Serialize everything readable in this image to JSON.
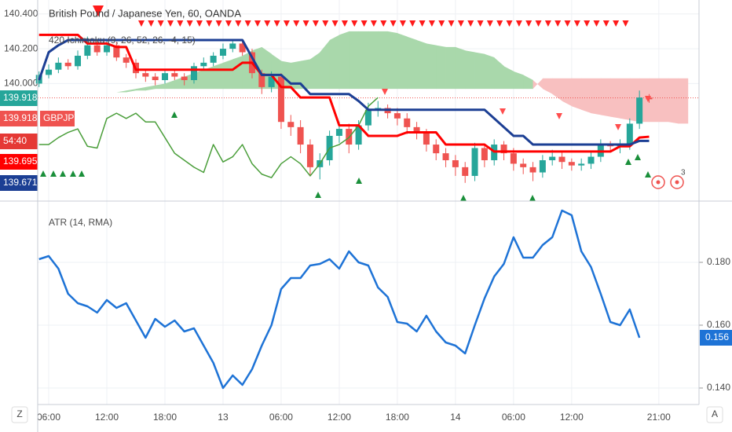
{
  "chart_data": [
    {
      "type": "candlestick",
      "title": "British Pound / Japanese Yen, 60, OANDA",
      "indicator": "420 Ichimoku (9, 26, 52, 26, -4, 15)",
      "ylim": [
        139.33,
        140.48
      ],
      "yticks": [
        {
          "value": 140.4,
          "label": "140.400"
        },
        {
          "value": 140.2,
          "label": "140.200"
        },
        {
          "value": 140.0,
          "label": "140.000"
        }
      ],
      "up_color": "#26a69a",
      "down_color": "#ef5350",
      "open": [
        140.0,
        140.05,
        140.08,
        140.12,
        140.1,
        140.16,
        140.22,
        140.18,
        140.22,
        140.15,
        140.12,
        140.06,
        140.04,
        140.02,
        140.06,
        140.04,
        140.02,
        140.1,
        140.12,
        140.16,
        140.2,
        140.23,
        140.18,
        140.06,
        139.98,
        140.04,
        139.78,
        139.75,
        139.65,
        139.52,
        139.56,
        139.7,
        139.74,
        139.65,
        139.76,
        139.85,
        139.86,
        139.83,
        139.8,
        139.75,
        139.72,
        139.65,
        139.6,
        139.56,
        139.52,
        139.47,
        139.63,
        139.56,
        139.65,
        139.6,
        139.54,
        139.52,
        139.49,
        139.56,
        139.58,
        139.55,
        139.53,
        139.54,
        139.58,
        139.65,
        139.64,
        139.65,
        139.77,
        139.92,
        null,
        null,
        null,
        null
      ],
      "high": [
        140.07,
        140.11,
        140.15,
        140.14,
        140.19,
        140.27,
        140.24,
        140.25,
        140.24,
        140.17,
        140.14,
        140.08,
        140.06,
        140.08,
        140.08,
        140.06,
        140.12,
        140.15,
        140.18,
        140.23,
        140.25,
        140.25,
        140.2,
        140.08,
        140.07,
        140.06,
        139.82,
        139.79,
        139.68,
        139.6,
        139.73,
        139.78,
        139.77,
        139.79,
        139.89,
        139.9,
        139.88,
        139.86,
        139.83,
        139.78,
        139.74,
        139.68,
        139.63,
        139.59,
        139.55,
        139.66,
        139.65,
        139.68,
        139.67,
        139.63,
        139.57,
        139.55,
        139.59,
        139.62,
        139.61,
        139.57,
        139.57,
        139.61,
        139.68,
        139.67,
        139.68,
        139.8,
        139.96,
        139.94,
        null,
        null,
        null,
        null
      ],
      "low": [
        139.98,
        140.03,
        140.06,
        140.08,
        140.08,
        140.14,
        140.16,
        140.16,
        140.13,
        140.09,
        140.03,
        140.01,
        139.99,
        140.0,
        140.02,
        139.99,
        140.0,
        140.08,
        140.1,
        140.14,
        140.18,
        140.16,
        140.03,
        139.94,
        139.95,
        139.74,
        139.7,
        139.6,
        139.47,
        139.45,
        139.53,
        139.66,
        139.6,
        139.62,
        139.73,
        139.81,
        139.8,
        139.76,
        139.71,
        139.68,
        139.61,
        139.56,
        139.52,
        139.47,
        139.43,
        139.44,
        139.52,
        139.53,
        139.56,
        139.5,
        139.48,
        139.44,
        139.46,
        139.53,
        139.51,
        139.5,
        139.5,
        139.51,
        139.55,
        139.61,
        139.6,
        139.62,
        139.74,
        139.89,
        null,
        null,
        null,
        null
      ],
      "close": [
        140.05,
        140.08,
        140.12,
        140.1,
        140.16,
        140.22,
        140.18,
        140.22,
        140.15,
        140.12,
        140.06,
        140.04,
        140.02,
        140.06,
        140.04,
        140.02,
        140.1,
        140.12,
        140.16,
        140.2,
        140.23,
        140.18,
        140.06,
        139.98,
        140.04,
        139.78,
        139.75,
        139.65,
        139.52,
        139.56,
        139.7,
        139.74,
        139.65,
        139.76,
        139.85,
        139.86,
        139.83,
        139.8,
        139.75,
        139.72,
        139.65,
        139.6,
        139.56,
        139.52,
        139.47,
        139.63,
        139.56,
        139.65,
        139.6,
        139.54,
        139.52,
        139.49,
        139.56,
        139.58,
        139.55,
        139.53,
        139.54,
        139.58,
        139.65,
        139.64,
        139.65,
        139.77,
        139.92,
        139.91,
        null,
        null,
        null,
        null
      ],
      "cloud": {
        "up_color": "#a9d8ab",
        "down_color": "#f8c0c0",
        "span_a": [
          null,
          null,
          null,
          null,
          null,
          null,
          null,
          139.94,
          139.95,
          139.96,
          139.97,
          139.98,
          139.99,
          140.0,
          140.02,
          140.04,
          140.06,
          140.08,
          140.1,
          140.12,
          140.14,
          140.16,
          140.19,
          140.21,
          140.17,
          140.13,
          140.12,
          140.13,
          140.14,
          140.18,
          140.25,
          140.28,
          140.3,
          140.3,
          140.3,
          140.3,
          140.3,
          140.29,
          140.27,
          140.25,
          140.23,
          140.22,
          140.21,
          140.21,
          140.19,
          140.18,
          140.17,
          140.15,
          140.1,
          140.07,
          140.05,
          140.02,
          139.97,
          139.94,
          139.9,
          139.87,
          139.85,
          139.83,
          139.82,
          139.81,
          139.8,
          139.79,
          139.78,
          139.78,
          139.78,
          139.78,
          139.77,
          139.77
        ],
        "span_b": [
          null,
          null,
          null,
          null,
          null,
          null,
          null,
          139.94,
          139.95,
          139.95,
          139.96,
          139.96,
          139.97,
          139.97,
          139.97,
          139.97,
          139.97,
          139.97,
          139.97,
          139.97,
          139.97,
          139.97,
          139.97,
          139.97,
          139.97,
          139.97,
          139.97,
          139.97,
          139.97,
          139.97,
          139.97,
          139.97,
          139.97,
          139.97,
          139.97,
          139.97,
          139.97,
          139.97,
          139.97,
          139.97,
          139.97,
          139.97,
          139.97,
          139.97,
          139.97,
          139.97,
          139.97,
          139.97,
          139.97,
          139.97,
          139.97,
          139.97,
          140.03,
          140.03,
          140.03,
          140.03,
          140.03,
          140.03,
          140.03,
          140.03,
          140.03,
          140.03,
          140.03,
          140.03,
          140.03,
          140.03,
          140.03,
          140.03
        ]
      },
      "overlays": [
        {
          "color": "#4a9e3a",
          "width": 1.5,
          "values": [
            139.65,
            139.65,
            139.69,
            139.72,
            139.74,
            139.64,
            139.63,
            139.8,
            139.83,
            139.8,
            139.83,
            139.78,
            139.78,
            139.69,
            139.6,
            139.56,
            139.52,
            139.49,
            139.65,
            139.55,
            139.58,
            139.65,
            139.54,
            139.48,
            139.46,
            139.54,
            139.58,
            139.54,
            139.47,
            139.54,
            139.63,
            139.65,
            139.69,
            139.76,
            139.87,
            139.92,
            null,
            null,
            null,
            null,
            null,
            null,
            null,
            null,
            null,
            null,
            null,
            null,
            null,
            null,
            null,
            null,
            null,
            null,
            null,
            null,
            null,
            null,
            null,
            null,
            null,
            null,
            null,
            null,
            null,
            null,
            null,
            null
          ]
        },
        {
          "color": "#ff0000",
          "width": 3,
          "values": [
            140.28,
            140.28,
            140.28,
            140.28,
            140.28,
            140.23,
            140.23,
            140.23,
            140.21,
            140.21,
            140.08,
            140.08,
            140.08,
            140.08,
            140.08,
            140.08,
            140.08,
            140.08,
            140.08,
            140.08,
            140.08,
            140.12,
            140.12,
            140.05,
            140.05,
            139.98,
            139.98,
            139.92,
            139.92,
            139.92,
            139.92,
            139.76,
            139.76,
            139.76,
            139.7,
            139.7,
            139.7,
            139.7,
            139.72,
            139.72,
            139.72,
            139.72,
            139.65,
            139.65,
            139.65,
            139.65,
            139.65,
            139.61,
            139.61,
            139.61,
            139.61,
            139.61,
            139.61,
            139.61,
            139.61,
            139.61,
            139.61,
            139.61,
            139.61,
            139.61,
            139.64,
            139.64,
            139.69,
            139.695,
            null,
            null,
            null,
            null
          ]
        },
        {
          "color": "#1c3f94",
          "width": 3,
          "values": [
            140.02,
            140.18,
            140.22,
            140.25,
            140.25,
            140.25,
            140.25,
            140.25,
            140.25,
            140.25,
            140.25,
            140.25,
            140.25,
            140.25,
            140.25,
            140.25,
            140.25,
            140.25,
            140.25,
            140.25,
            140.25,
            140.25,
            140.15,
            140.05,
            140.05,
            140.05,
            140.0,
            140.0,
            139.94,
            139.94,
            139.94,
            139.94,
            139.94,
            139.9,
            139.85,
            139.85,
            139.85,
            139.85,
            139.85,
            139.85,
            139.85,
            139.85,
            139.85,
            139.85,
            139.85,
            139.85,
            139.85,
            139.8,
            139.75,
            139.7,
            139.7,
            139.65,
            139.65,
            139.65,
            139.65,
            139.65,
            139.65,
            139.65,
            139.65,
            139.65,
            139.65,
            139.65,
            139.671,
            139.671,
            null,
            null,
            null,
            null
          ]
        }
      ],
      "price_labels": [
        {
          "value": 139.918,
          "color": "#26a69a"
        },
        {
          "value": 139.918,
          "color": "#ef5350",
          "tag": "GBPJPY"
        },
        {
          "text": "54:40",
          "color": "#e53935"
        },
        {
          "value": 139.695,
          "color": "#ff0000"
        },
        {
          "value": 139.671,
          "color": "#1c3f94"
        }
      ]
    },
    {
      "type": "line",
      "title": "ATR (14, RMA)",
      "categories": [
        null,
        "06:00",
        null,
        null,
        null,
        null,
        null,
        "12:00",
        null,
        null,
        null,
        null,
        null,
        "18:00",
        null,
        null,
        null,
        null,
        null,
        "13",
        null,
        null,
        null,
        null,
        null,
        "06:00",
        null,
        null,
        null,
        null,
        null,
        "12:00",
        null,
        null,
        null,
        null,
        null,
        "18:00",
        null,
        null,
        null,
        null,
        null,
        "14",
        null,
        null,
        null,
        null,
        null,
        "06:00",
        null,
        null,
        null,
        null,
        null,
        "12:00",
        null,
        null,
        null,
        null,
        null,
        null,
        null,
        null,
        "21:00",
        null,
        null,
        null
      ],
      "ylim": [
        0.13475,
        0.199
      ],
      "yticks": [
        {
          "value": 0.18,
          "label": "0.180"
        },
        {
          "value": 0.16,
          "label": "0.160"
        },
        {
          "value": 0.14,
          "label": "0.140"
        }
      ],
      "series": [
        {
          "color": "#1e73d6",
          "values": [
            0.181,
            0.182,
            0.178,
            0.17,
            0.167,
            0.166,
            0.164,
            0.168,
            0.1655,
            0.167,
            0.1615,
            0.156,
            0.162,
            0.1595,
            0.1615,
            0.158,
            0.159,
            0.1535,
            0.148,
            0.14,
            0.144,
            0.141,
            0.146,
            0.1535,
            0.16,
            0.1715,
            0.175,
            0.175,
            0.179,
            0.1795,
            0.181,
            0.178,
            0.1835,
            0.18,
            0.179,
            0.172,
            0.169,
            0.161,
            0.1605,
            0.158,
            0.163,
            0.158,
            0.1545,
            0.1535,
            0.151,
            0.16,
            0.1685,
            0.1755,
            0.1795,
            0.188,
            0.1815,
            0.1815,
            0.1855,
            0.188,
            0.1965,
            0.195,
            0.1835,
            0.1785,
            0.17,
            0.161,
            0.16,
            0.165,
            0.156,
            null,
            null,
            null,
            null,
            null
          ]
        }
      ],
      "last_value": 0.156
    }
  ],
  "ui": {
    "left_button": "Z",
    "right_button": "A",
    "badge": "3"
  }
}
